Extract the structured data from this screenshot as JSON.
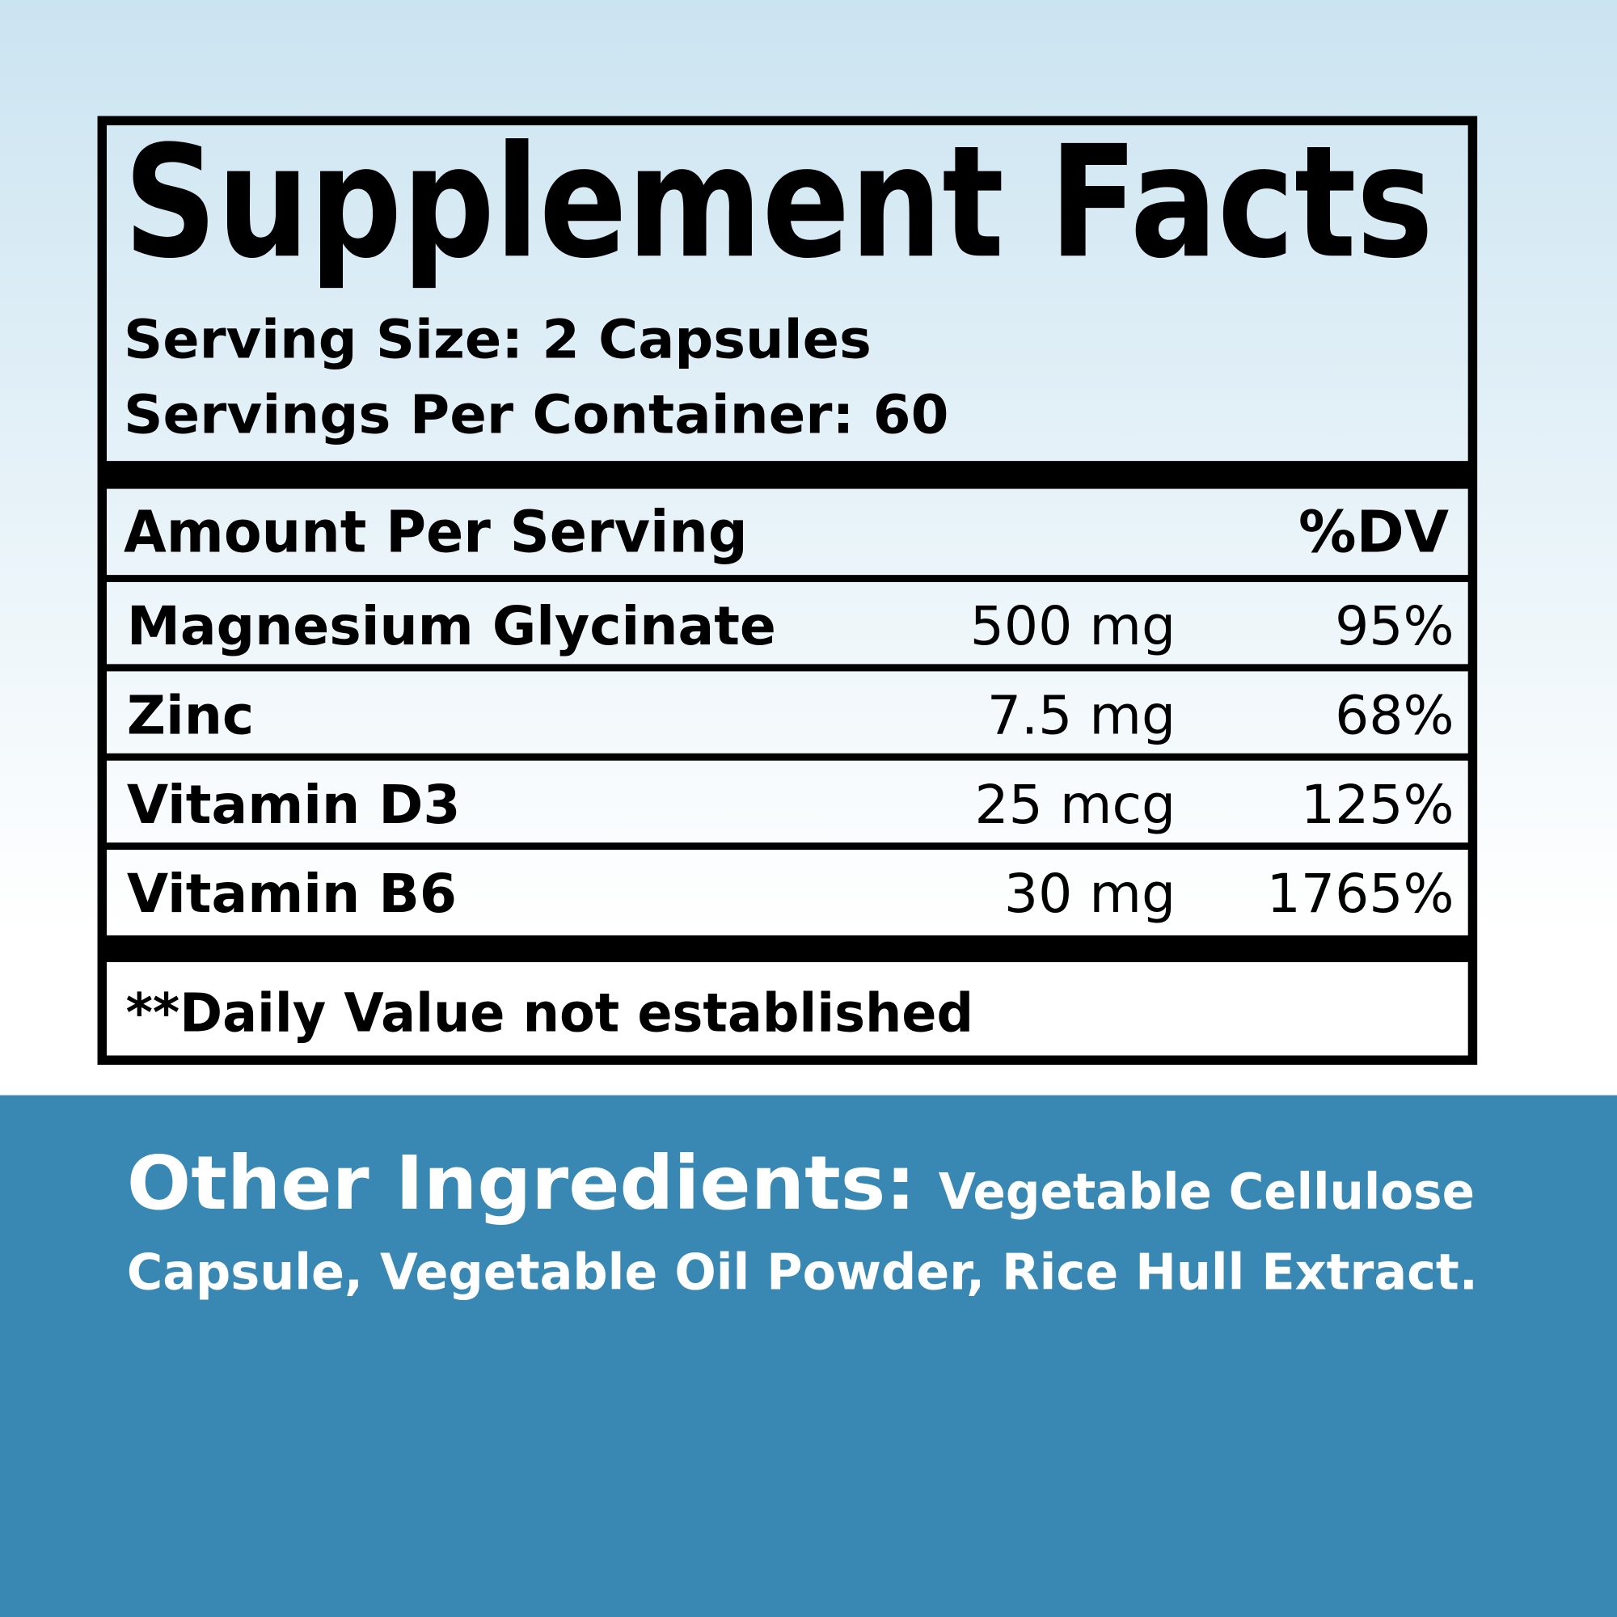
{
  "title": "Supplement Facts",
  "serving_size": "Serving Size: 2 Capsules",
  "servings_per_container": "Servings Per Container: 60",
  "table": {
    "header": [
      "Amount Per Serving",
      "%DV"
    ],
    "rows": [
      [
        "Magnesium Glycinate",
        "500 mg",
        "95%"
      ],
      [
        "Zinc",
        "7.5 mg",
        "68%"
      ],
      [
        "Vitamin D3",
        "25 mcg",
        "125%"
      ],
      [
        "Vitamin B6",
        "30 mg",
        "1765%"
      ]
    ]
  },
  "footnote": "**Daily Value not established",
  "other_ingredients": {
    "label": "Other Ingredients:",
    "lines": [
      "Vegetable Cellulose",
      "Capsule, Vegetable Oil Powder,  Rice Hull Extract."
    ]
  }
}
